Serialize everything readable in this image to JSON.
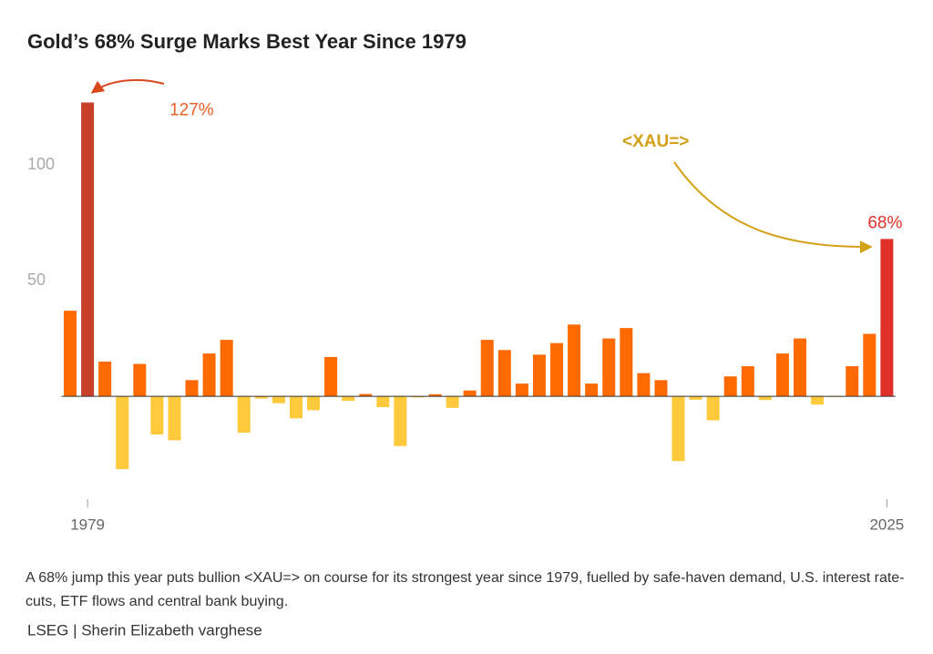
{
  "chart_data": {
    "type": "bar",
    "title": "Gold’s 68% Surge Marks Best Year Since 1979",
    "categories": [
      null,
      "1979",
      null,
      null,
      null,
      null,
      null,
      null,
      null,
      null,
      null,
      null,
      null,
      null,
      null,
      null,
      null,
      null,
      null,
      null,
      null,
      null,
      null,
      null,
      null,
      null,
      null,
      null,
      null,
      null,
      null,
      null,
      null,
      null,
      null,
      null,
      null,
      null,
      null,
      null,
      null,
      null,
      null,
      null,
      null,
      null,
      null,
      "2025"
    ],
    "values": [
      37,
      127,
      15,
      -31.5,
      14,
      -16.5,
      -19,
      7,
      18.5,
      24.4,
      -15.7,
      -1,
      -3,
      -9.5,
      -6,
      17,
      -2,
      1,
      -4.7,
      -21.5,
      -0.5,
      0.9,
      -5,
      2.5,
      24.4,
      20,
      5.5,
      18,
      23,
      31,
      5.5,
      25,
      29.5,
      10,
      7,
      -28,
      -1.5,
      -10.4,
      8.6,
      13,
      -1.6,
      18.5,
      25,
      -3.6,
      -0.3,
      13,
      27,
      68
    ],
    "value_labels": [
      null,
      "127%",
      null,
      null,
      null,
      null,
      null,
      null,
      null,
      null,
      null,
      null,
      null,
      null,
      null,
      null,
      null,
      null,
      null,
      null,
      null,
      null,
      null,
      null,
      null,
      null,
      null,
      null,
      null,
      null,
      null,
      null,
      null,
      null,
      null,
      null,
      null,
      null,
      null,
      null,
      null,
      null,
      null,
      null,
      null,
      null,
      null,
      "68%"
    ],
    "colors": [
      "#ff6a00",
      "#c8402a",
      "#ff6a00",
      "#ffc93c",
      "#ff6a00",
      "#ffc93c",
      "#ffc93c",
      "#ff6a00",
      "#ff6a00",
      "#ff6a00",
      "#ffc93c",
      "#ffc93c",
      "#ffc93c",
      "#ffc93c",
      "#ffc93c",
      "#ff6a00",
      "#ffc93c",
      "#ff6a00",
      "#ffc93c",
      "#ffc93c",
      "#ffc93c",
      "#ff6a00",
      "#ffc93c",
      "#ff6a00",
      "#ff6a00",
      "#ff6a00",
      "#ff6a00",
      "#ff6a00",
      "#ff6a00",
      "#ff6a00",
      "#ff6a00",
      "#ff6a00",
      "#ff6a00",
      "#ff6a00",
      "#ff6a00",
      "#ffc93c",
      "#ffc93c",
      "#ffc93c",
      "#ff6a00",
      "#ff6a00",
      "#ffc93c",
      "#ff6a00",
      "#ff6a00",
      "#ffc93c",
      "#ffc93c",
      "#ff6a00",
      "#ff6a00",
      "#e03128"
    ],
    "annotation": "<XAU=>",
    "ylim": [
      -43,
      132
    ],
    "yticks": [
      50,
      100
    ],
    "caption": "A 68% jump this year puts bullion <XAU=> on course for its strongest year since 1979, fuelled by safe-haven demand, U.S. interest rate-cuts, ETF flows and central bank buying.",
    "source": "LSEG | Sherin Elizabeth varghese"
  }
}
